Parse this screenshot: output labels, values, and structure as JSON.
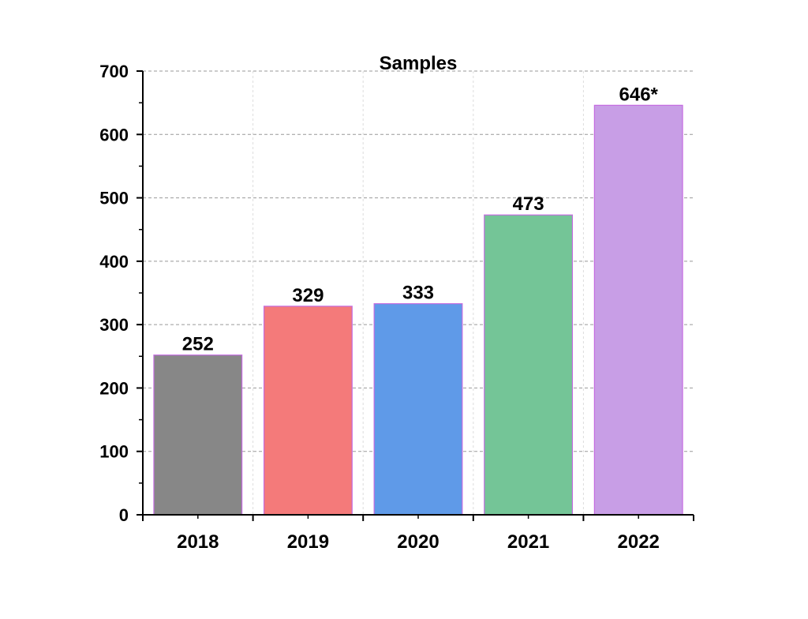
{
  "chart_data": {
    "type": "bar",
    "title": "Samples",
    "xlabel": "",
    "ylabel": "",
    "categories": [
      "2018",
      "2019",
      "2020",
      "2021",
      "2022"
    ],
    "values": [
      252,
      329,
      333,
      473,
      646
    ],
    "data_labels": [
      "252",
      "329",
      "333",
      "473",
      "646*"
    ],
    "colors": [
      "#878787",
      "#f47a7a",
      "#5f9ae8",
      "#74c597",
      "#c89ee6"
    ],
    "bar_edge_color": "#c46be0",
    "ylim": [
      0,
      700
    ],
    "yticks": [
      0,
      100,
      200,
      300,
      400,
      500,
      600,
      700
    ],
    "grid": true,
    "legend": "none"
  }
}
